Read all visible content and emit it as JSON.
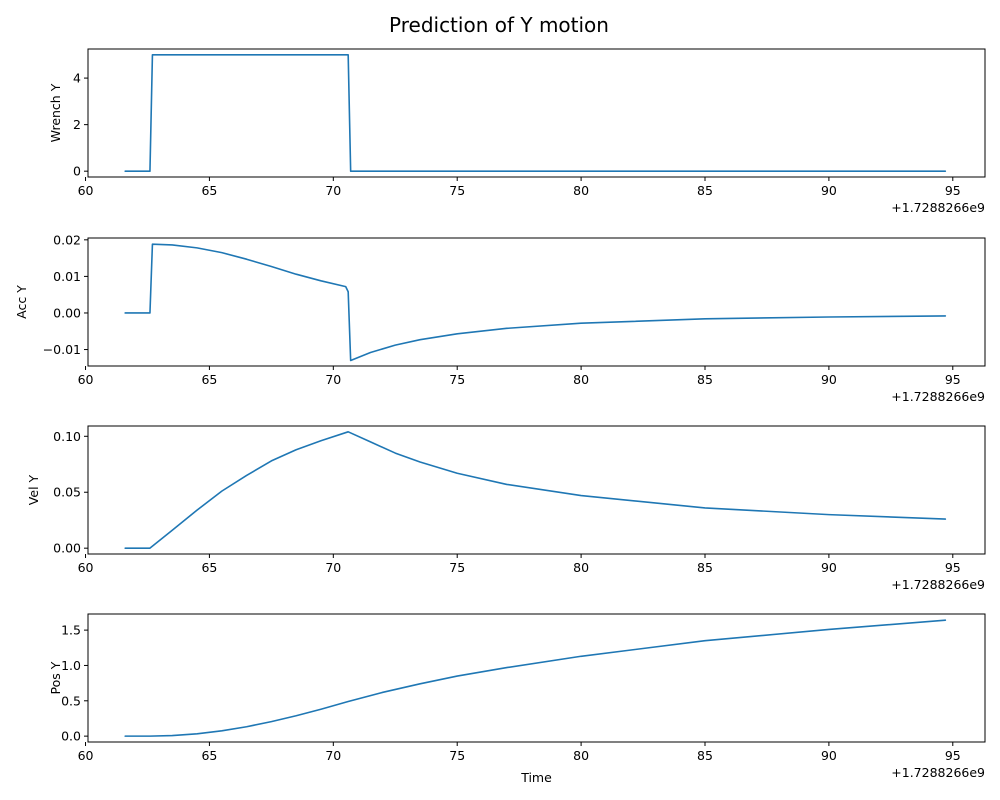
{
  "title": "Prediction of Y motion",
  "chart_data": [
    {
      "type": "line",
      "ylabel": "Wrench Y",
      "xlabel": "",
      "x_offset_label": "+1.7288266e9",
      "xlim": [
        60.1,
        96.3
      ],
      "ylim": [
        -0.25,
        5.25
      ],
      "xticks": [
        60,
        65,
        70,
        75,
        80,
        85,
        90,
        95
      ],
      "xtick_labels": [
        "60",
        "65",
        "70",
        "75",
        "80",
        "85",
        "90",
        "95"
      ],
      "yticks": [
        0,
        2,
        4
      ],
      "ytick_labels": [
        "0",
        "2",
        "4"
      ],
      "color": "#1f77b4",
      "series": [
        {
          "x": [
            61.6,
            62.6,
            62.7,
            70.6,
            70.7,
            94.7
          ],
          "y": [
            0,
            0,
            5,
            5,
            0,
            0
          ]
        }
      ]
    },
    {
      "type": "line",
      "ylabel": "Acc Y",
      "xlabel": "",
      "x_offset_label": "+1.7288266e9",
      "xlim": [
        60.1,
        96.3
      ],
      "ylim": [
        -0.0145,
        0.0205
      ],
      "xticks": [
        60,
        65,
        70,
        75,
        80,
        85,
        90,
        95
      ],
      "xtick_labels": [
        "60",
        "65",
        "70",
        "75",
        "80",
        "85",
        "90",
        "95"
      ],
      "yticks": [
        -0.01,
        0.0,
        0.01,
        0.02
      ],
      "ytick_labels": [
        "−0.01",
        "0.00",
        "0.01",
        "0.02"
      ],
      "color": "#1f77b4",
      "series": [
        {
          "x": [
            61.6,
            62.6,
            62.7,
            63.5,
            64.5,
            65.5,
            66.5,
            67.5,
            68.5,
            69.5,
            70.5,
            70.6,
            70.7,
            71.5,
            72.5,
            73.5,
            75,
            77,
            80,
            85,
            90,
            94.7
          ],
          "y": [
            0,
            0,
            0.0188,
            0.0186,
            0.0178,
            0.0165,
            0.0147,
            0.0127,
            0.0106,
            0.0088,
            0.0072,
            0.0058,
            -0.013,
            -0.0108,
            -0.0088,
            -0.0073,
            -0.0057,
            -0.0042,
            -0.0028,
            -0.0016,
            -0.0011,
            -0.0008
          ]
        }
      ]
    },
    {
      "type": "line",
      "ylabel": "Vel Y",
      "xlabel": "",
      "x_offset_label": "+1.7288266e9",
      "xlim": [
        60.1,
        96.3
      ],
      "ylim": [
        -0.0052,
        0.1092
      ],
      "xticks": [
        60,
        65,
        70,
        75,
        80,
        85,
        90,
        95
      ],
      "xtick_labels": [
        "60",
        "65",
        "70",
        "75",
        "80",
        "85",
        "90",
        "95"
      ],
      "yticks": [
        0.0,
        0.05,
        0.1
      ],
      "ytick_labels": [
        "0.00",
        "0.05",
        "0.10"
      ],
      "color": "#1f77b4",
      "series": [
        {
          "x": [
            61.6,
            62.6,
            63.5,
            64.5,
            65.5,
            66.5,
            67.5,
            68.5,
            69.5,
            70.6,
            71.5,
            72.5,
            73.5,
            75,
            77,
            80,
            85,
            90,
            94.7
          ],
          "y": [
            0,
            0,
            0.016,
            0.034,
            0.051,
            0.065,
            0.078,
            0.088,
            0.096,
            0.104,
            0.095,
            0.085,
            0.077,
            0.067,
            0.057,
            0.047,
            0.036,
            0.03,
            0.026
          ]
        }
      ]
    },
    {
      "type": "line",
      "ylabel": "Pos Y",
      "xlabel": "Time",
      "x_offset_label": "+1.7288266e9",
      "xlim": [
        60.1,
        96.3
      ],
      "ylim": [
        -0.083,
        1.728
      ],
      "xticks": [
        60,
        65,
        70,
        75,
        80,
        85,
        90,
        95
      ],
      "xtick_labels": [
        "60",
        "65",
        "70",
        "75",
        "80",
        "85",
        "90",
        "95"
      ],
      "yticks": [
        0.0,
        0.5,
        1.0,
        1.5
      ],
      "ytick_labels": [
        "0.0",
        "0.5",
        "1.0",
        "1.5"
      ],
      "color": "#1f77b4",
      "series": [
        {
          "x": [
            61.6,
            62.6,
            63.5,
            64.5,
            65.5,
            66.5,
            67.5,
            68.5,
            69.5,
            70.6,
            72,
            73.5,
            75,
            77,
            80,
            85,
            90,
            94.7
          ],
          "y": [
            0,
            0,
            0.008,
            0.033,
            0.075,
            0.133,
            0.205,
            0.288,
            0.38,
            0.49,
            0.62,
            0.74,
            0.85,
            0.97,
            1.13,
            1.35,
            1.51,
            1.64
          ]
        }
      ]
    }
  ]
}
